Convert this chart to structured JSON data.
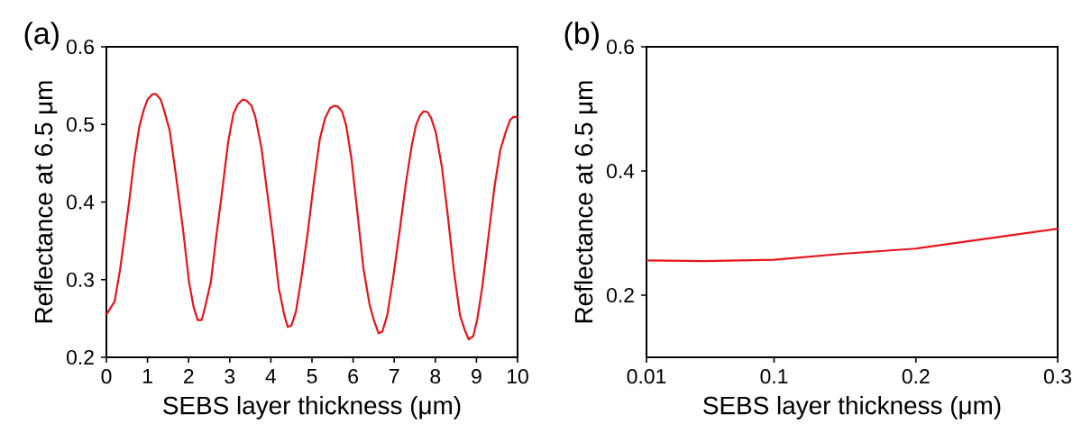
{
  "chart_data": [
    {
      "type": "line",
      "title": "(a)",
      "xlabel": "SEBS layer thickness (μm)",
      "ylabel": "Reflectance at 6.5 μm",
      "x": [
        0,
        0.2,
        0.33,
        0.44,
        0.55,
        0.68,
        0.8,
        0.91,
        1.0,
        1.12,
        1.21,
        1.32,
        1.41,
        1.54,
        1.7,
        1.87,
        2.01,
        2.12,
        2.22,
        2.32,
        2.41,
        2.54,
        2.67,
        2.82,
        2.96,
        3.09,
        3.2,
        3.31,
        3.4,
        3.53,
        3.62,
        3.77,
        3.91,
        4.06,
        4.19,
        4.32,
        4.41,
        4.5,
        4.61,
        4.75,
        4.9,
        5.05,
        5.19,
        5.32,
        5.44,
        5.54,
        5.63,
        5.73,
        5.83,
        5.96,
        6.11,
        6.25,
        6.4,
        6.51,
        6.62,
        6.71,
        6.83,
        6.97,
        7.13,
        7.28,
        7.43,
        7.53,
        7.63,
        7.72,
        7.81,
        7.9,
        8.01,
        8.16,
        8.3,
        8.45,
        8.6,
        8.71,
        8.81,
        8.92,
        9.02,
        9.14,
        9.29,
        9.44,
        9.58,
        9.71,
        9.82,
        9.91,
        10.0
      ],
      "series": [
        {
          "color": "#e8131b",
          "values": [
            0.255,
            0.272,
            0.312,
            0.355,
            0.399,
            0.456,
            0.497,
            0.519,
            0.532,
            0.539,
            0.539,
            0.532,
            0.517,
            0.492,
            0.431,
            0.362,
            0.297,
            0.265,
            0.248,
            0.248,
            0.267,
            0.297,
            0.355,
            0.416,
            0.477,
            0.514,
            0.526,
            0.532,
            0.531,
            0.524,
            0.51,
            0.47,
            0.413,
            0.351,
            0.29,
            0.256,
            0.239,
            0.241,
            0.259,
            0.305,
            0.362,
            0.427,
            0.481,
            0.508,
            0.521,
            0.524,
            0.523,
            0.517,
            0.499,
            0.456,
            0.384,
            0.315,
            0.268,
            0.247,
            0.231,
            0.233,
            0.254,
            0.301,
            0.362,
            0.423,
            0.474,
            0.499,
            0.512,
            0.517,
            0.516,
            0.508,
            0.49,
            0.445,
            0.384,
            0.312,
            0.254,
            0.236,
            0.223,
            0.227,
            0.249,
            0.29,
            0.355,
            0.42,
            0.467,
            0.49,
            0.506,
            0.51,
            0.509
          ]
        }
      ],
      "xlim": [
        0,
        10
      ],
      "ylim": [
        0.2,
        0.6
      ],
      "xticks": [
        0,
        1,
        2,
        3,
        4,
        5,
        6,
        7,
        8,
        9,
        10
      ],
      "yticks": [
        0.2,
        0.3,
        0.4,
        0.5,
        0.6
      ]
    },
    {
      "type": "line",
      "title": "(b)",
      "xlabel": "SEBS layer thickness (μm)",
      "ylabel": "Reflectance at 6.5 μm",
      "x": [
        0.01,
        0.05,
        0.1,
        0.15,
        0.2,
        0.25,
        0.3
      ],
      "series": [
        {
          "color": "#e8131b",
          "values": [
            0.256,
            0.255,
            0.257,
            0.267,
            0.275,
            0.291,
            0.307
          ]
        }
      ],
      "xlim": [
        0.01,
        0.3
      ],
      "ylim": [
        0.1,
        0.6
      ],
      "xticks": [
        0.01,
        0.1,
        0.2,
        0.3
      ],
      "yticks": [
        0.2,
        0.4,
        0.6
      ]
    }
  ]
}
